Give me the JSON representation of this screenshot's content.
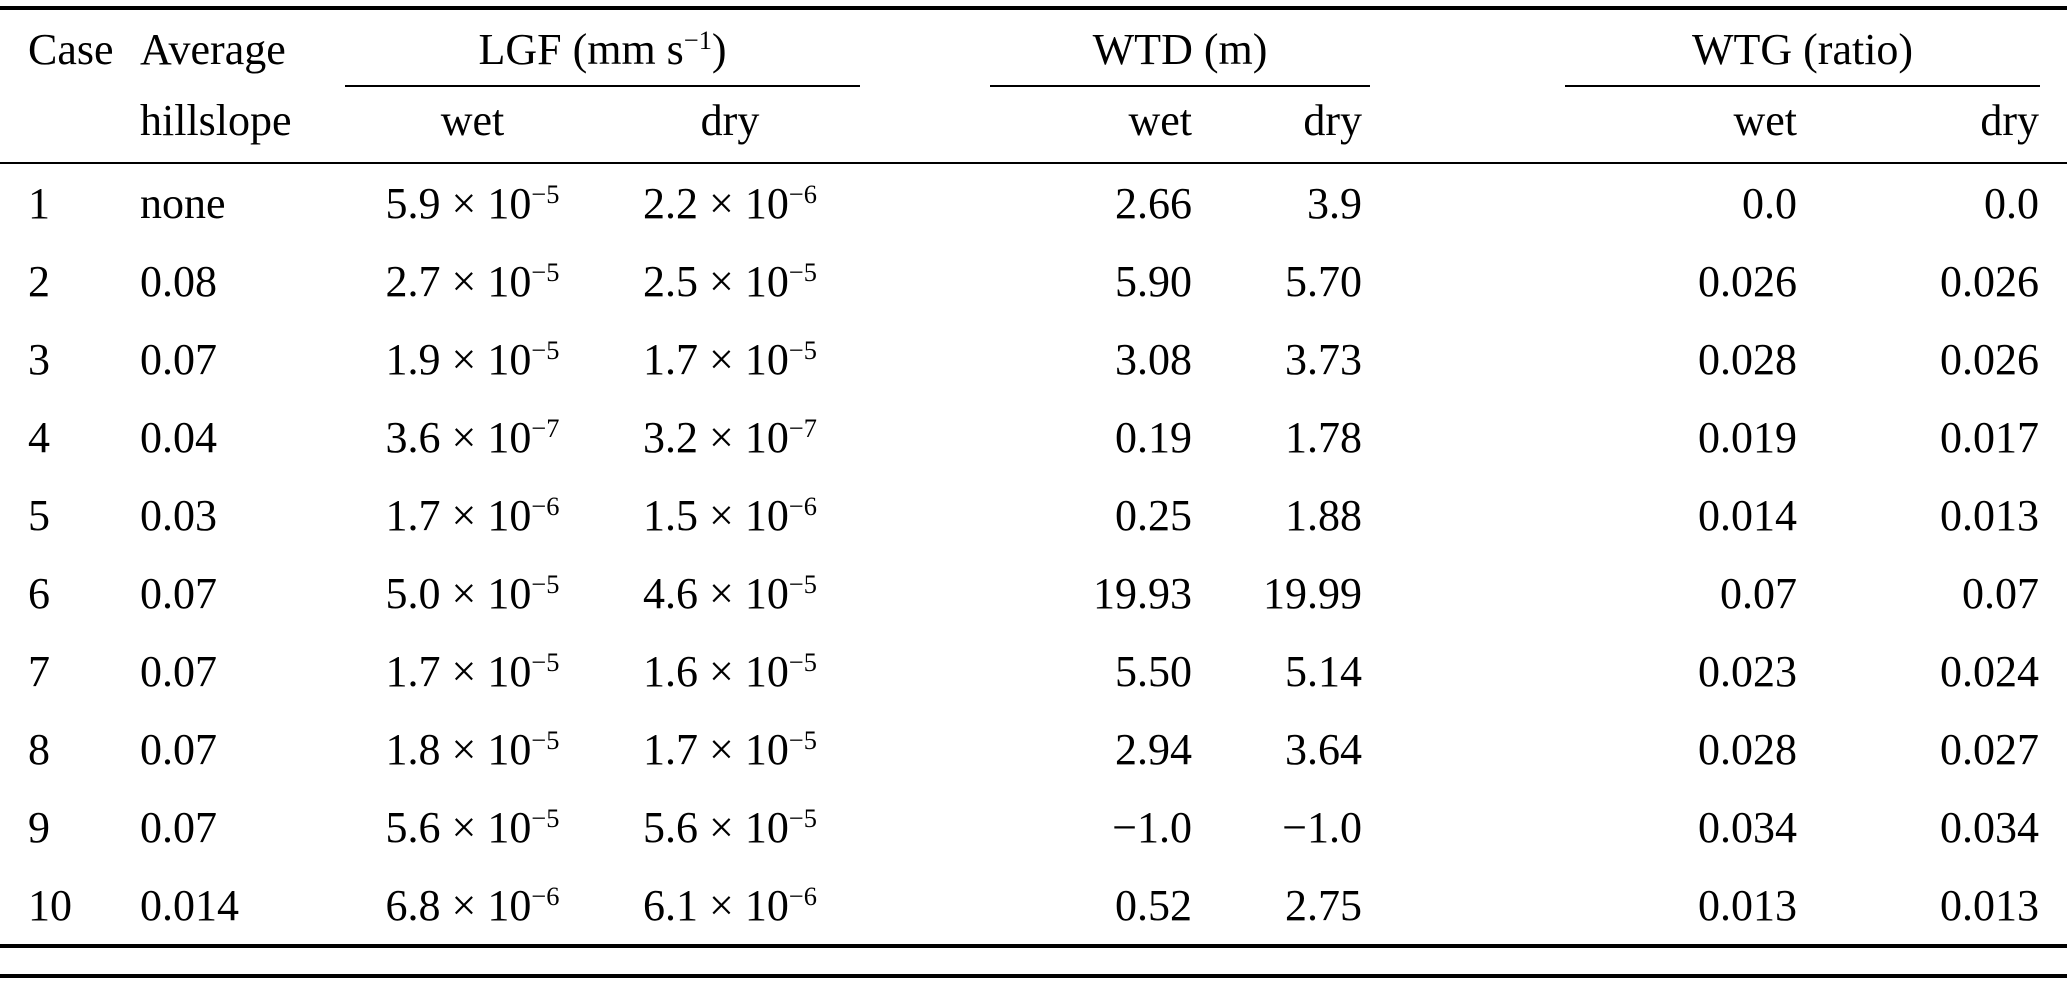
{
  "table": {
    "headers": {
      "case": "Case",
      "avg_line1": "Average",
      "avg_line2": "hillslope",
      "lgf_group": {
        "pre": "LGF (mm s",
        "sup": "−1",
        "post": ")"
      },
      "wtd_group": "WTD (m)",
      "wtg_group": "WTG (ratio)",
      "sub_wet": "wet",
      "sub_dry": "dry"
    },
    "rows": [
      {
        "case": "1",
        "hillslope": "none",
        "lgf_wet": {
          "m": "5.9",
          "e": "−5"
        },
        "lgf_dry": {
          "m": "2.2",
          "e": "−6"
        },
        "wtd_wet": "2.66",
        "wtd_dry": "3.9",
        "wtg_wet": "0.0",
        "wtg_dry": "0.0"
      },
      {
        "case": "2",
        "hillslope": "0.08",
        "lgf_wet": {
          "m": "2.7",
          "e": "−5"
        },
        "lgf_dry": {
          "m": "2.5",
          "e": "−5"
        },
        "wtd_wet": "5.90",
        "wtd_dry": "5.70",
        "wtg_wet": "0.026",
        "wtg_dry": "0.026"
      },
      {
        "case": "3",
        "hillslope": "0.07",
        "lgf_wet": {
          "m": "1.9",
          "e": "−5"
        },
        "lgf_dry": {
          "m": "1.7",
          "e": "−5"
        },
        "wtd_wet": "3.08",
        "wtd_dry": "3.73",
        "wtg_wet": "0.028",
        "wtg_dry": "0.026"
      },
      {
        "case": "4",
        "hillslope": "0.04",
        "lgf_wet": {
          "m": "3.6",
          "e": "−7"
        },
        "lgf_dry": {
          "m": "3.2",
          "e": "−7"
        },
        "wtd_wet": "0.19",
        "wtd_dry": "1.78",
        "wtg_wet": "0.019",
        "wtg_dry": "0.017"
      },
      {
        "case": "5",
        "hillslope": "0.03",
        "lgf_wet": {
          "m": "1.7",
          "e": "−6"
        },
        "lgf_dry": {
          "m": "1.5",
          "e": "−6"
        },
        "wtd_wet": "0.25",
        "wtd_dry": "1.88",
        "wtg_wet": "0.014",
        "wtg_dry": "0.013"
      },
      {
        "case": "6",
        "hillslope": "0.07",
        "lgf_wet": {
          "m": "5.0",
          "e": "−5"
        },
        "lgf_dry": {
          "m": "4.6",
          "e": "−5"
        },
        "wtd_wet": "19.93",
        "wtd_dry": "19.99",
        "wtg_wet": "0.07",
        "wtg_dry": "0.07"
      },
      {
        "case": "7",
        "hillslope": "0.07",
        "lgf_wet": {
          "m": "1.7",
          "e": "−5"
        },
        "lgf_dry": {
          "m": "1.6",
          "e": "−5"
        },
        "wtd_wet": "5.50",
        "wtd_dry": "5.14",
        "wtg_wet": "0.023",
        "wtg_dry": "0.024"
      },
      {
        "case": "8",
        "hillslope": "0.07",
        "lgf_wet": {
          "m": "1.8",
          "e": "−5"
        },
        "lgf_dry": {
          "m": "1.7",
          "e": "−5"
        },
        "wtd_wet": "2.94",
        "wtd_dry": "3.64",
        "wtg_wet": "0.028",
        "wtg_dry": "0.027"
      },
      {
        "case": "9",
        "hillslope": "0.07",
        "lgf_wet": {
          "m": "5.6",
          "e": "−5"
        },
        "lgf_dry": {
          "m": "5.6",
          "e": "−5"
        },
        "wtd_wet": "−1.0",
        "wtd_dry": "−1.0",
        "wtg_wet": "0.034",
        "wtg_dry": "0.034"
      },
      {
        "case": "10",
        "hillslope": "0.014",
        "lgf_wet": {
          "m": "6.8",
          "e": "−6"
        },
        "lgf_dry": {
          "m": "6.1",
          "e": "−6"
        },
        "wtd_wet": "0.52",
        "wtd_dry": "2.75",
        "wtg_wet": "0.013",
        "wtg_dry": "0.013"
      }
    ]
  },
  "chart_data": {
    "type": "table",
    "columns": [
      "Case",
      "Average hillslope",
      "LGF wet (mm s^-1)",
      "LGF dry (mm s^-1)",
      "WTD wet (m)",
      "WTD dry (m)",
      "WTG wet (ratio)",
      "WTG dry (ratio)"
    ],
    "rows": [
      [
        1,
        "none",
        5.9e-05,
        2.2e-06,
        2.66,
        3.9,
        0.0,
        0.0
      ],
      [
        2,
        0.08,
        2.7e-05,
        2.5e-05,
        5.9,
        5.7,
        0.026,
        0.026
      ],
      [
        3,
        0.07,
        1.9e-05,
        1.7e-05,
        3.08,
        3.73,
        0.028,
        0.026
      ],
      [
        4,
        0.04,
        3.6e-07,
        3.2e-07,
        0.19,
        1.78,
        0.019,
        0.017
      ],
      [
        5,
        0.03,
        1.7e-06,
        1.5e-06,
        0.25,
        1.88,
        0.014,
        0.013
      ],
      [
        6,
        0.07,
        5e-05,
        4.6e-05,
        19.93,
        19.99,
        0.07,
        0.07
      ],
      [
        7,
        0.07,
        1.7e-05,
        1.6e-05,
        5.5,
        5.14,
        0.023,
        0.024
      ],
      [
        8,
        0.07,
        1.8e-05,
        1.7e-05,
        2.94,
        3.64,
        0.028,
        0.027
      ],
      [
        9,
        0.07,
        5.6e-05,
        5.6e-05,
        -1.0,
        -1.0,
        0.034,
        0.034
      ],
      [
        10,
        0.014,
        6.8e-06,
        6.1e-06,
        0.52,
        2.75,
        0.013,
        0.013
      ]
    ]
  }
}
